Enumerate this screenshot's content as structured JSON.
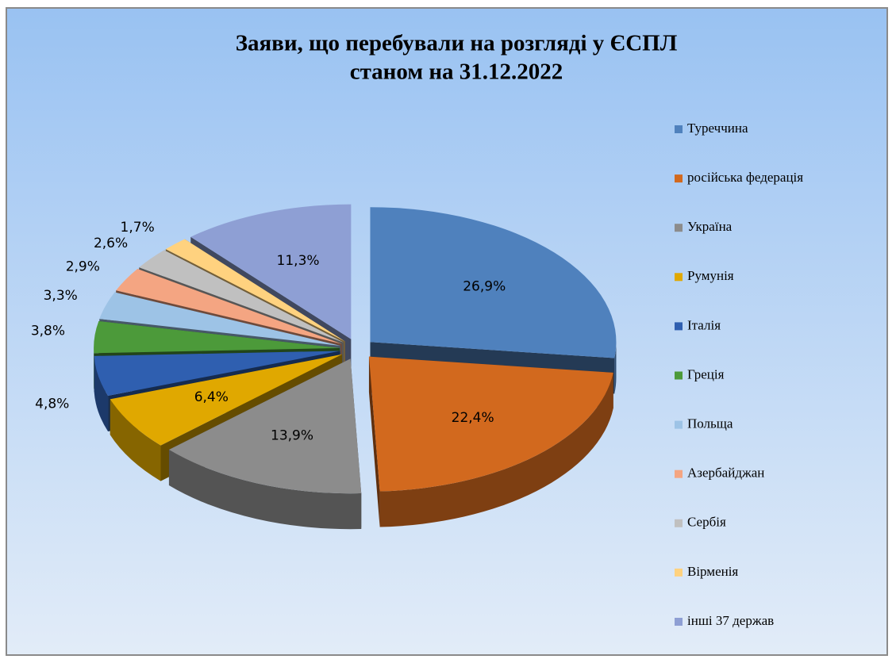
{
  "chart_data": {
    "type": "pie",
    "title": [
      "Заяви, що перебували на розгляді у ЄСПЛ",
      "станом на 31.12.2022"
    ],
    "categories": [
      "Туреччина",
      "російська федерація",
      "Україна",
      "Румунія",
      "Італія",
      "Греція",
      "Польща",
      "Азербайджан",
      "Сербія",
      "Вірменія",
      "інші 37 держав"
    ],
    "values": [
      26.9,
      22.4,
      13.9,
      6.4,
      4.8,
      3.8,
      3.3,
      2.9,
      2.6,
      1.7,
      11.3
    ],
    "value_labels": [
      "26,9%",
      "22,4%",
      "13,9%",
      "6,4%",
      "4,8%",
      "3,8%",
      "3,3%",
      "2,9%",
      "2,6%",
      "1,7%",
      "11,3%"
    ],
    "colors": [
      "#4f81bd",
      "#d2691e",
      "#8c8c8c",
      "#e0a800",
      "#2f5fb0",
      "#4c9a3a",
      "#9dc3e6",
      "#f4a582",
      "#c0c0c0",
      "#ffd27f",
      "#8e9fd4"
    ],
    "legend": "right"
  }
}
